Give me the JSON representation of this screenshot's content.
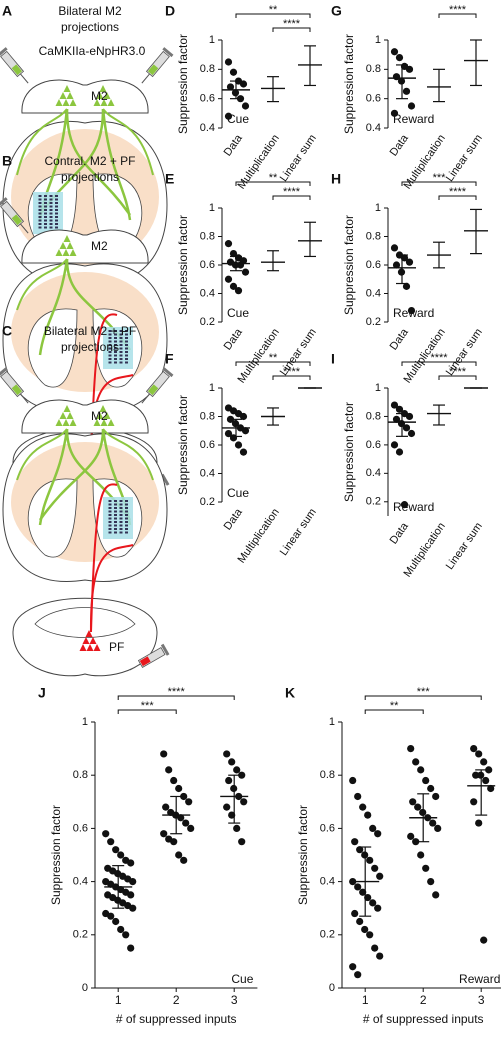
{
  "schematics": [
    {
      "panel": "A",
      "title": [
        "Bilateral M2",
        "projections"
      ],
      "construct": "CaMKIIa-eNpHR3.0",
      "labels": [
        "M2"
      ]
    },
    {
      "panel": "B",
      "title": [
        "Contral. M2 + PF",
        "projections"
      ],
      "labels": [
        "M2",
        "PF"
      ]
    },
    {
      "panel": "C",
      "title": [
        "Bilateral M2 + PF",
        "projections"
      ],
      "labels": [
        "M2",
        "PF"
      ]
    }
  ],
  "chart_data": [
    {
      "type": "strip",
      "panel": "D",
      "ylabel": "Suppression factor",
      "annotation": "Cue",
      "ylim": [
        0.4,
        1
      ],
      "yticks": [
        0.4,
        0.6,
        0.8,
        1
      ],
      "groups": [
        {
          "category": "Data",
          "points": [
            0.85,
            0.78,
            0.72,
            0.7,
            0.68,
            0.64,
            0.6,
            0.55,
            0.48
          ],
          "mean": 0.66,
          "low": 0.6,
          "high": 0.72
        },
        {
          "category": "Multiplication",
          "mean": 0.67,
          "low": 0.58,
          "high": 0.75
        },
        {
          "category": "Linear sum",
          "mean": 0.83,
          "low": 0.69,
          "high": 0.96
        }
      ],
      "brackets": [
        {
          "from": 0,
          "to": 2,
          "label": "**"
        },
        {
          "from": 1,
          "to": 2,
          "label": "****"
        }
      ]
    },
    {
      "type": "strip",
      "panel": "E",
      "ylabel": "Suppression factor",
      "annotation": "Cue",
      "ylim": [
        0.2,
        1
      ],
      "yticks": [
        0.2,
        0.4,
        0.6,
        0.8,
        1
      ],
      "groups": [
        {
          "category": "Data",
          "points": [
            0.75,
            0.68,
            0.65,
            0.63,
            0.62,
            0.6,
            0.6,
            0.55,
            0.5,
            0.45,
            0.42
          ],
          "mean": 0.61,
          "low": 0.56,
          "high": 0.66
        },
        {
          "category": "Multiplication",
          "mean": 0.62,
          "low": 0.56,
          "high": 0.7
        },
        {
          "category": "Linear sum",
          "mean": 0.77,
          "low": 0.66,
          "high": 0.9
        }
      ],
      "brackets": [
        {
          "from": 0,
          "to": 2,
          "label": "**"
        },
        {
          "from": 1,
          "to": 2,
          "label": "****"
        }
      ]
    },
    {
      "type": "strip",
      "panel": "F",
      "ylabel": "Suppression factor",
      "annotation": "Cue",
      "ylim": [
        0.2,
        1
      ],
      "yticks": [
        0.2,
        0.4,
        0.6,
        0.8,
        1
      ],
      "groups": [
        {
          "category": "Data",
          "points": [
            0.86,
            0.84,
            0.82,
            0.8,
            0.78,
            0.75,
            0.72,
            0.7,
            0.68,
            0.65,
            0.6,
            0.55
          ],
          "mean": 0.72,
          "low": 0.66,
          "high": 0.78
        },
        {
          "category": "Multiplication",
          "mean": 0.8,
          "low": 0.74,
          "high": 0.86
        },
        {
          "category": "Linear sum",
          "mean": 1,
          "low": 1,
          "high": 1
        }
      ],
      "brackets": [
        {
          "from": 0,
          "to": 2,
          "label": "**"
        },
        {
          "from": 1,
          "to": 2,
          "label": "****"
        }
      ]
    },
    {
      "type": "strip",
      "panel": "G",
      "ylabel": "Suppression factor",
      "annotation": "Reward",
      "ylim": [
        0.4,
        1
      ],
      "yticks": [
        0.4,
        0.6,
        0.8,
        1
      ],
      "groups": [
        {
          "category": "Data",
          "points": [
            0.92,
            0.88,
            0.82,
            0.8,
            0.75,
            0.72,
            0.65,
            0.55,
            0.5
          ],
          "mean": 0.74,
          "low": 0.6,
          "high": 0.83
        },
        {
          "category": "Multiplication",
          "mean": 0.68,
          "low": 0.58,
          "high": 0.8
        },
        {
          "category": "Linear sum",
          "mean": 0.86,
          "low": 0.69,
          "high": 1
        }
      ],
      "brackets": [
        {
          "from": 1,
          "to": 2,
          "label": "****"
        }
      ]
    },
    {
      "type": "strip",
      "panel": "H",
      "ylabel": "Suppression factor",
      "annotation": "Reward",
      "ylim": [
        0.2,
        1
      ],
      "yticks": [
        0.2,
        0.4,
        0.6,
        0.8,
        1
      ],
      "groups": [
        {
          "category": "Data",
          "points": [
            0.72,
            0.67,
            0.65,
            0.62,
            0.6,
            0.55,
            0.45,
            0.28
          ],
          "mean": 0.58,
          "low": 0.47,
          "high": 0.67
        },
        {
          "category": "Multiplication",
          "mean": 0.67,
          "low": 0.58,
          "high": 0.76
        },
        {
          "category": "Linear sum",
          "mean": 0.84,
          "low": 0.68,
          "high": 0.99
        }
      ],
      "brackets": [
        {
          "from": 0,
          "to": 2,
          "label": "***"
        },
        {
          "from": 1,
          "to": 2,
          "label": "****"
        }
      ]
    },
    {
      "type": "strip",
      "panel": "I",
      "ylabel": "Suppression factor",
      "annotation": "Reward",
      "ylim": [
        0.1,
        1
      ],
      "yticks": [
        0.2,
        0.4,
        0.6,
        0.8,
        1
      ],
      "groups": [
        {
          "category": "Data",
          "points": [
            0.88,
            0.85,
            0.82,
            0.8,
            0.78,
            0.75,
            0.72,
            0.68,
            0.6,
            0.55,
            0.18
          ],
          "mean": 0.76,
          "low": 0.66,
          "high": 0.82
        },
        {
          "category": "Multiplication",
          "mean": 0.82,
          "low": 0.74,
          "high": 0.88
        },
        {
          "category": "Linear sum",
          "mean": 1,
          "low": 1,
          "high": 1
        }
      ],
      "brackets": [
        {
          "from": 0,
          "to": 2,
          "label": "****"
        },
        {
          "from": 1,
          "to": 2,
          "label": "****"
        }
      ]
    },
    {
      "type": "strip",
      "panel": "J",
      "ylabel": "Suppression factor",
      "xlabel": "# of suppressed inputs",
      "annotation": "Cue",
      "ylim": [
        0,
        1
      ],
      "yticks": [
        0,
        0.2,
        0.4,
        0.6,
        0.8,
        1
      ],
      "xlim": [
        0.6,
        3.4
      ],
      "xticks": [
        1,
        2,
        3
      ],
      "groups": [
        {
          "x": 1,
          "points": [
            0.58,
            0.55,
            0.52,
            0.5,
            0.48,
            0.47,
            0.45,
            0.44,
            0.43,
            0.42,
            0.41,
            0.4,
            0.4,
            0.39,
            0.38,
            0.37,
            0.36,
            0.35,
            0.35,
            0.34,
            0.33,
            0.32,
            0.31,
            0.3,
            0.28,
            0.27,
            0.25,
            0.22,
            0.2,
            0.15
          ],
          "mean": 0.38,
          "low": 0.3,
          "high": 0.46
        },
        {
          "x": 2,
          "points": [
            0.88,
            0.82,
            0.78,
            0.75,
            0.72,
            0.7,
            0.68,
            0.66,
            0.65,
            0.64,
            0.62,
            0.6,
            0.58,
            0.56,
            0.55,
            0.5,
            0.48
          ],
          "mean": 0.65,
          "low": 0.58,
          "high": 0.72
        },
        {
          "x": 3,
          "points": [
            0.88,
            0.85,
            0.82,
            0.8,
            0.78,
            0.75,
            0.72,
            0.7,
            0.68,
            0.65,
            0.6,
            0.55
          ],
          "mean": 0.72,
          "low": 0.62,
          "high": 0.8
        }
      ],
      "brackets": [
        {
          "from": 0,
          "to": 2,
          "label": "****"
        },
        {
          "from": 0,
          "to": 1,
          "label": "***"
        }
      ]
    },
    {
      "type": "strip",
      "panel": "K",
      "ylabel": "Suppression factor",
      "xlabel": "# of suppressed inputs",
      "annotation": "Reward",
      "ylim": [
        0,
        1
      ],
      "yticks": [
        0,
        0.2,
        0.4,
        0.6,
        0.8,
        1
      ],
      "xlim": [
        0.6,
        3.4
      ],
      "xticks": [
        1,
        2,
        3
      ],
      "groups": [
        {
          "x": 1,
          "points": [
            0.78,
            0.72,
            0.68,
            0.65,
            0.6,
            0.58,
            0.55,
            0.52,
            0.5,
            0.48,
            0.45,
            0.42,
            0.4,
            0.38,
            0.36,
            0.34,
            0.32,
            0.3,
            0.28,
            0.25,
            0.22,
            0.2,
            0.15,
            0.12,
            0.08,
            0.05
          ],
          "mean": 0.4,
          "low": 0.27,
          "high": 0.53
        },
        {
          "x": 2,
          "points": [
            0.9,
            0.85,
            0.82,
            0.78,
            0.75,
            0.72,
            0.7,
            0.68,
            0.66,
            0.64,
            0.62,
            0.6,
            0.57,
            0.55,
            0.5,
            0.45,
            0.4,
            0.35
          ],
          "mean": 0.64,
          "low": 0.55,
          "high": 0.73
        },
        {
          "x": 3,
          "points": [
            0.9,
            0.88,
            0.85,
            0.82,
            0.8,
            0.8,
            0.78,
            0.75,
            0.7,
            0.62,
            0.18
          ],
          "mean": 0.76,
          "low": 0.65,
          "high": 0.82
        }
      ],
      "brackets": [
        {
          "from": 0,
          "to": 2,
          "label": "***"
        },
        {
          "from": 0,
          "to": 1,
          "label": "**"
        }
      ]
    }
  ]
}
